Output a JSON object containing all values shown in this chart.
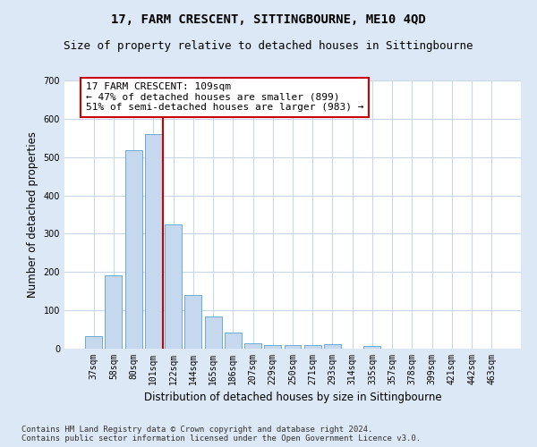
{
  "title": "17, FARM CRESCENT, SITTINGBOURNE, ME10 4QD",
  "subtitle": "Size of property relative to detached houses in Sittingbourne",
  "xlabel": "Distribution of detached houses by size in Sittingbourne",
  "ylabel": "Number of detached properties",
  "categories": [
    "37sqm",
    "58sqm",
    "80sqm",
    "101sqm",
    "122sqm",
    "144sqm",
    "165sqm",
    "186sqm",
    "207sqm",
    "229sqm",
    "250sqm",
    "271sqm",
    "293sqm",
    "314sqm",
    "335sqm",
    "357sqm",
    "378sqm",
    "399sqm",
    "421sqm",
    "442sqm",
    "463sqm"
  ],
  "values": [
    32,
    192,
    517,
    560,
    325,
    140,
    85,
    42,
    15,
    10,
    10,
    10,
    12,
    0,
    8,
    0,
    0,
    0,
    0,
    0,
    0
  ],
  "bar_color": "#c5d8ee",
  "bar_edge_color": "#6aaad4",
  "bar_edge_width": 0.7,
  "vline_color": "#cc0000",
  "vline_index": 3.5,
  "annotation_text": "17 FARM CRESCENT: 109sqm\n← 47% of detached houses are smaller (899)\n51% of semi-detached houses are larger (983) →",
  "annotation_box_color": "#ffffff",
  "annotation_box_edge": "#cc0000",
  "ylim": [
    0,
    700
  ],
  "yticks": [
    0,
    100,
    200,
    300,
    400,
    500,
    600,
    700
  ],
  "footer_text": "Contains HM Land Registry data © Crown copyright and database right 2024.\nContains public sector information licensed under the Open Government Licence v3.0.",
  "bg_color": "#dce8f5",
  "plot_bg_color": "#ffffff",
  "grid_color": "#c8d8ea",
  "title_fontsize": 10,
  "subtitle_fontsize": 9,
  "axis_label_fontsize": 8.5,
  "tick_fontsize": 7,
  "annotation_fontsize": 8,
  "footer_fontsize": 6.5
}
